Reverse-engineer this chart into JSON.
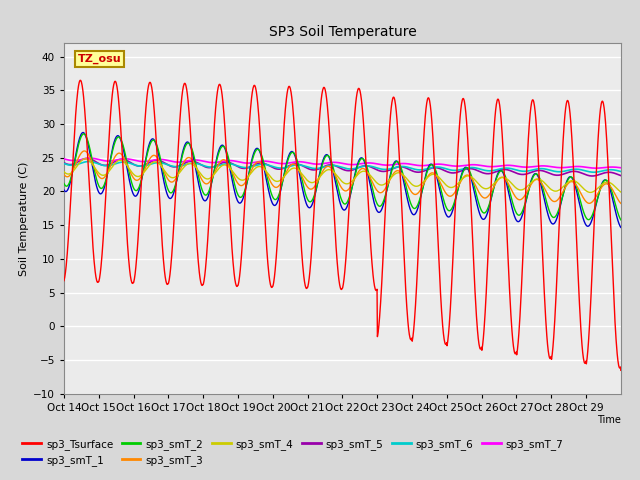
{
  "title": "SP3 Soil Temperature",
  "ylabel": "Soil Temperature (C)",
  "xlabel": "Time",
  "tz_label": "TZ_osu",
  "ylim": [
    -10,
    42
  ],
  "yticks": [
    -10,
    -5,
    0,
    5,
    10,
    15,
    20,
    25,
    30,
    35,
    40
  ],
  "x_tick_labels": [
    "Oct 14",
    "Oct 15",
    "Oct 16",
    "Oct 17",
    "Oct 18",
    "Oct 19",
    "Oct 20",
    "Oct 21",
    "Oct 22",
    "Oct 23",
    "Oct 24",
    "Oct 25",
    "Oct 26",
    "Oct 27",
    "Oct 28",
    "Oct 29"
  ],
  "series_colors": {
    "sp3_Tsurface": "#FF0000",
    "sp3_smT_1": "#0000CC",
    "sp3_smT_2": "#00CC00",
    "sp3_smT_3": "#FF8800",
    "sp3_smT_4": "#CCCC00",
    "sp3_smT_5": "#9900AA",
    "sp3_smT_6": "#00CCCC",
    "sp3_smT_7": "#FF00FF"
  },
  "bg_color": "#D8D8D8",
  "plot_bg_color": "#EBEBEB",
  "grid_color": "#FFFFFF"
}
